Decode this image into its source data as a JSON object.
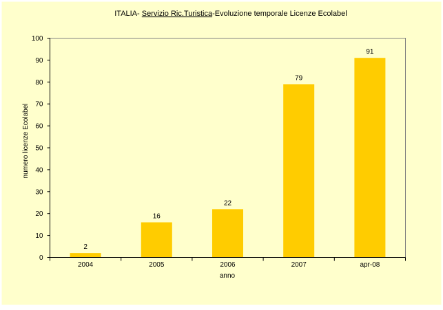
{
  "chart_data": {
    "type": "bar",
    "title": "ITALIA- Servizio Ric.Turistica-Evoluzione temporale Licenze Ecolabel",
    "title_parts": {
      "prefix": "ITALIA- ",
      "underlined": "Servizio Ric.Turistica",
      "suffix": "-Evoluzione temporale Licenze Ecolabel"
    },
    "categories": [
      "2004",
      "2005",
      "2006",
      "2007",
      "apr-08"
    ],
    "values": [
      2,
      16,
      22,
      79,
      91
    ],
    "xlabel": "anno",
    "ylabel": "numero licenze Ecolabel",
    "ylim": [
      0,
      100
    ],
    "yticks": [
      0,
      10,
      20,
      30,
      40,
      50,
      60,
      70,
      80,
      90,
      100
    ],
    "grid": "off",
    "legend": "none",
    "data_labels": true,
    "colors": {
      "page": "#FFFFFF",
      "background": "#FFFFCC",
      "bar": "#FFCC00",
      "plot_border": "#808080",
      "axis": "#000000",
      "text": "#000000"
    }
  }
}
